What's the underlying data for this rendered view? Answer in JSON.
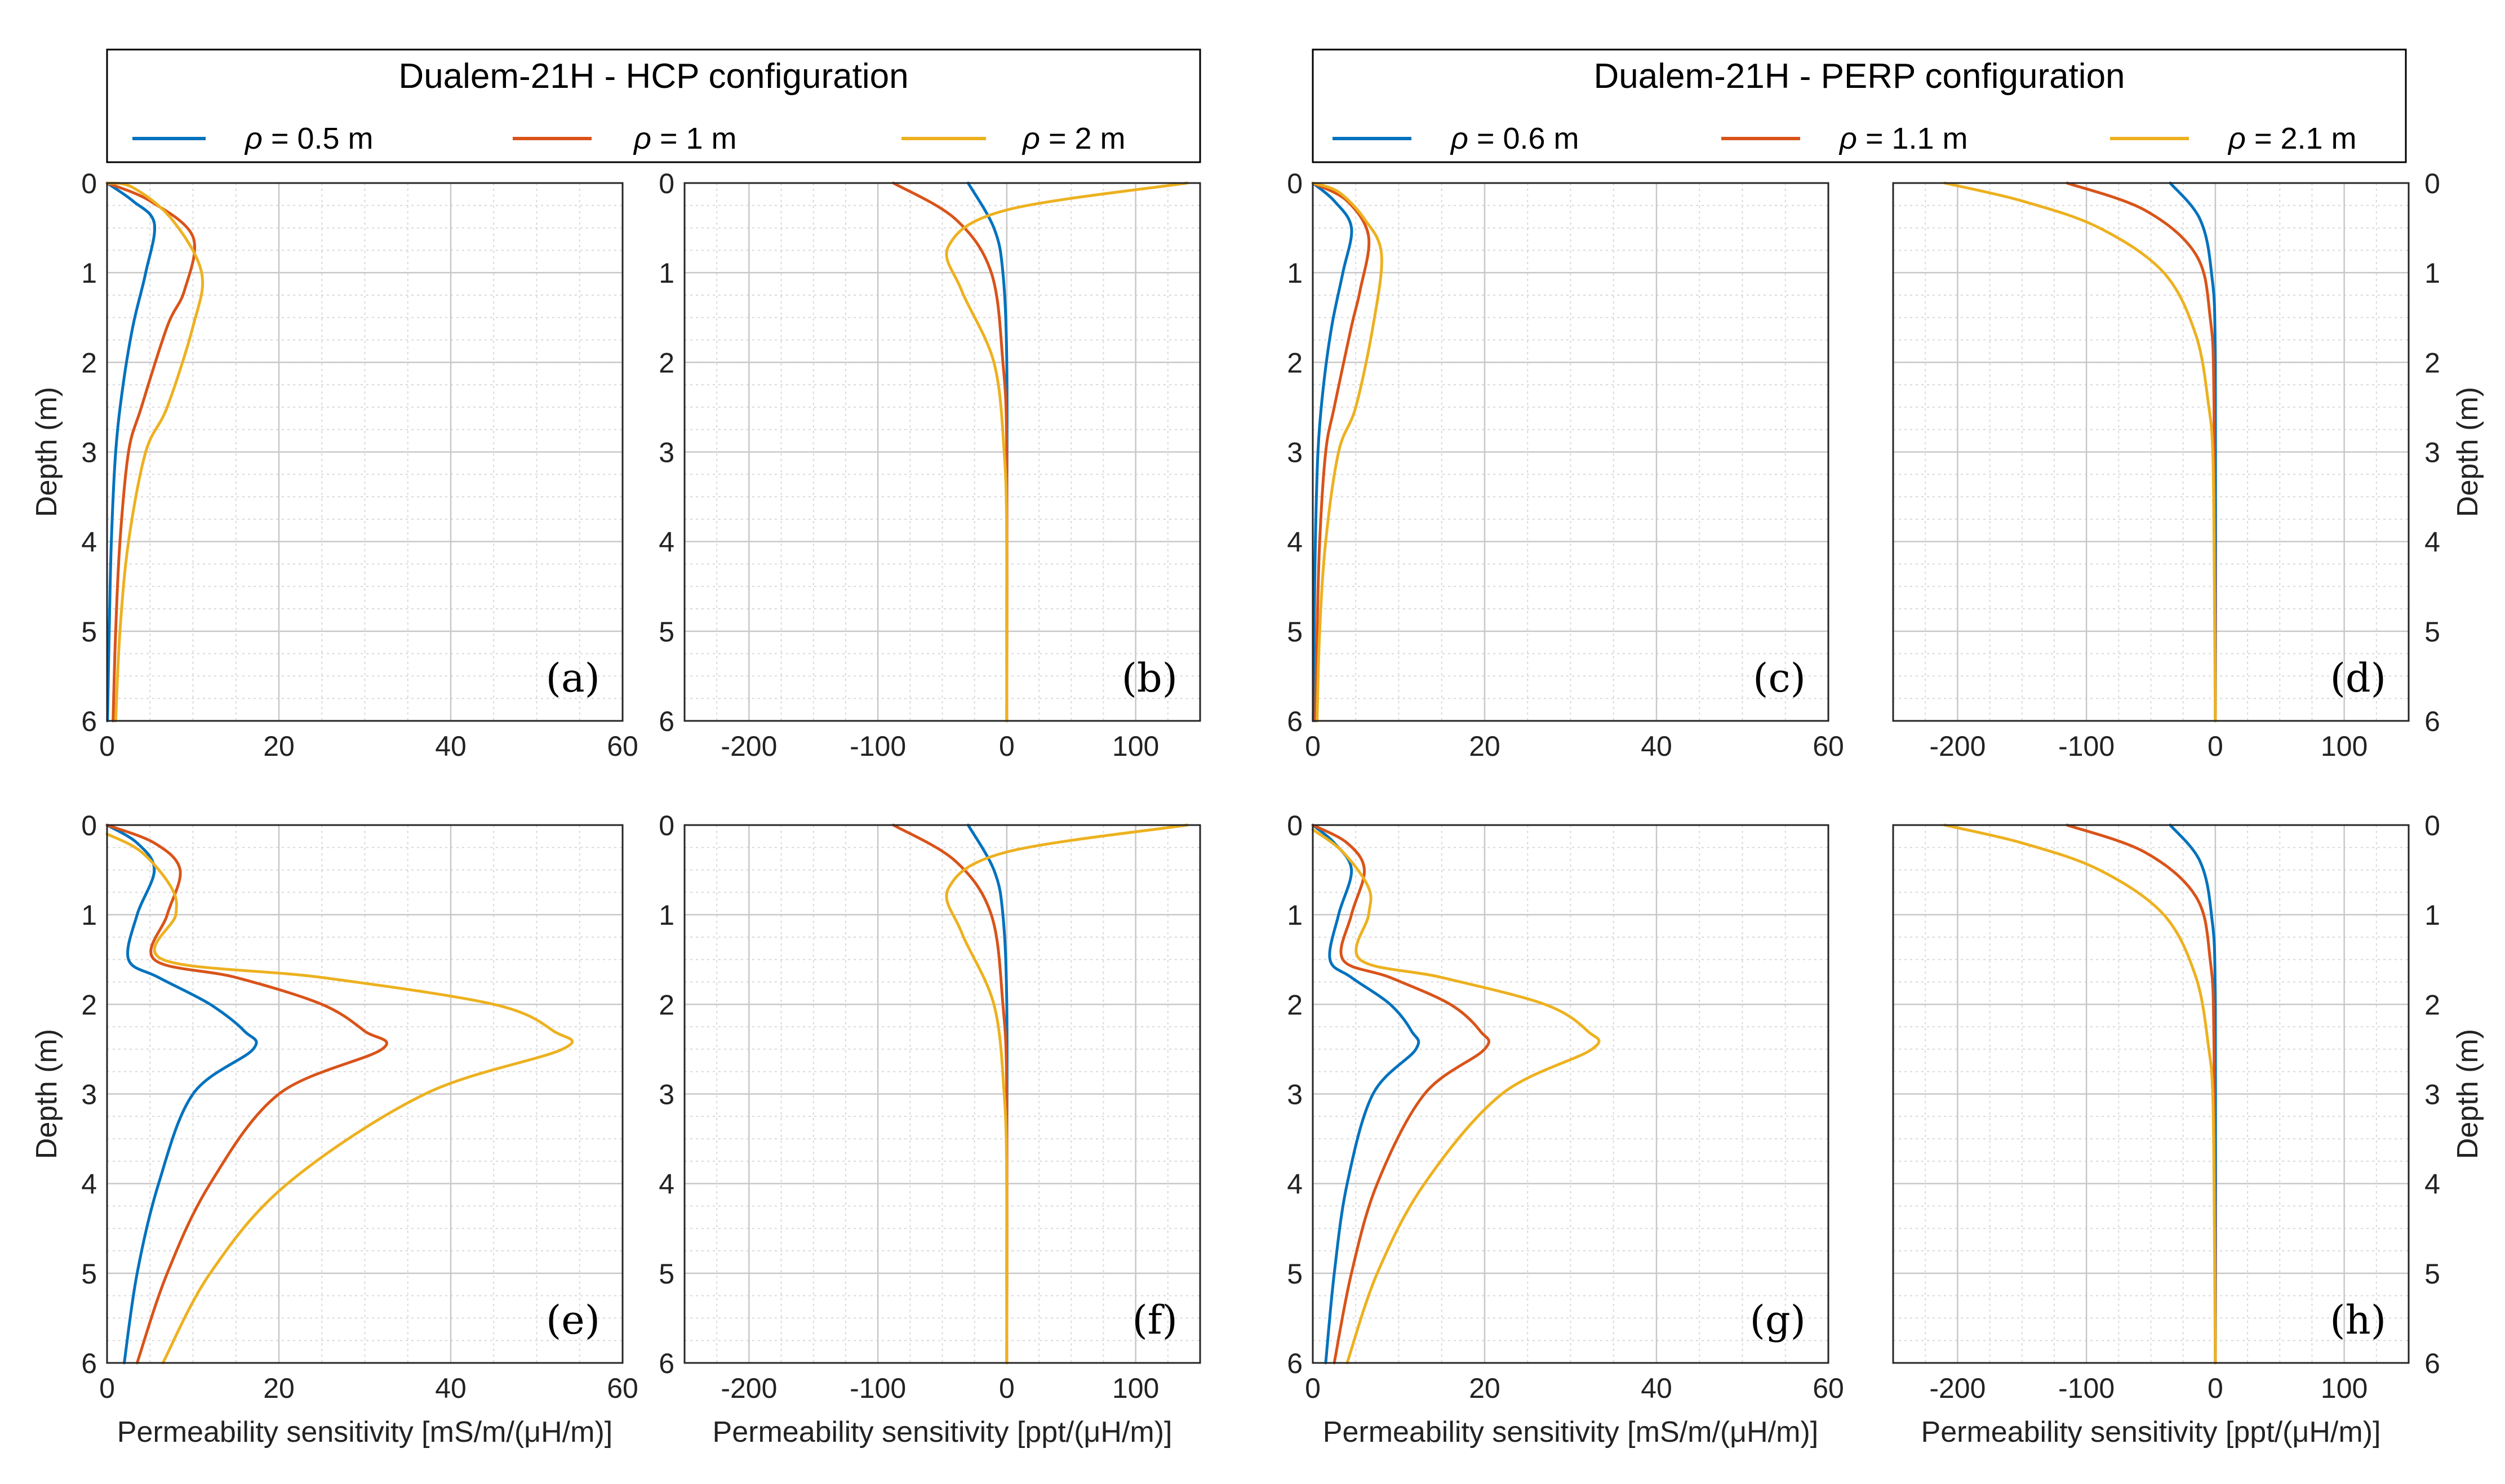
{
  "colors": {
    "short": "#0072BD",
    "mid": "#D95319",
    "long": "#EDB120"
  },
  "legends": [
    {
      "title": "Dualem-21H - HCP configuration",
      "symbol": "ρ",
      "entries": [
        "= 0.5 m",
        "= 1 m",
        "= 2 m"
      ]
    },
    {
      "title": "Dualem-21H - PERP configuration",
      "symbol": "ρ",
      "entries": [
        "= 0.6 m",
        "= 1.1 m",
        "= 2.1 m"
      ]
    }
  ],
  "axis_labels": {
    "ylabel": "Depth (m)",
    "xlabel_cond": "Permeability sensitivity [mS/m/(μH/m)]",
    "xlabel_ppt": "Permeability sensitivity [ppt/(μH/m)]"
  },
  "chart_data": [
    {
      "type": "line",
      "panel": "(a)",
      "xlim": [
        0,
        60
      ],
      "ylim": [
        0,
        6
      ],
      "xticks": [
        0,
        20,
        40,
        60
      ],
      "yticks": [
        0,
        1,
        2,
        3,
        4,
        5,
        6
      ],
      "grid": true,
      "series": [
        {
          "name": "ρ = 0.5 m",
          "x": [
            0,
            3,
            5.5,
            4.5,
            3,
            1.8,
            1,
            0.5,
            0.25,
            0.05
          ],
          "y": [
            0,
            0.2,
            0.45,
            1.0,
            1.6,
            2.3,
            3.0,
            4.0,
            5.0,
            6.0
          ]
        },
        {
          "name": "ρ = 1 m",
          "x": [
            0,
            5,
            10,
            9,
            7,
            4,
            2.5,
            1.5,
            1,
            0.7
          ],
          "y": [
            0,
            0.2,
            0.6,
            1.2,
            1.6,
            2.5,
            3.0,
            4.0,
            5.0,
            6.0
          ]
        },
        {
          "name": "ρ = 2 m",
          "x": [
            0,
            3,
            7.5,
            11,
            10,
            7,
            4.5,
            2.5,
            1.5,
            1
          ],
          "y": [
            0,
            0.05,
            0.4,
            1.0,
            1.6,
            2.5,
            3.0,
            4.0,
            5.0,
            6.0
          ]
        }
      ]
    },
    {
      "type": "line",
      "panel": "(b)",
      "xlim": [
        -250,
        150
      ],
      "ylim": [
        0,
        6
      ],
      "xticks": [
        -200,
        -100,
        0,
        100
      ],
      "yticks": [
        0,
        1,
        2,
        3,
        4,
        5,
        6
      ],
      "grid": true,
      "series": [
        {
          "name": "ρ = 0.5 m",
          "x": [
            -30,
            -10,
            -3,
            0,
            0,
            0
          ],
          "y": [
            0,
            0.5,
            1.0,
            2.0,
            4.0,
            6.0
          ]
        },
        {
          "name": "ρ = 1 m",
          "x": [
            -88,
            -40,
            -12,
            -3,
            0,
            0
          ],
          "y": [
            0,
            0.4,
            1.0,
            2.0,
            3.0,
            6.0
          ]
        },
        {
          "name": "ρ = 2 m",
          "x": [
            140,
            0,
            -45,
            -35,
            -10,
            -2,
            0,
            0
          ],
          "y": [
            0,
            0.3,
            0.7,
            1.2,
            2.0,
            3.0,
            4.0,
            6.0
          ]
        }
      ]
    },
    {
      "type": "line",
      "panel": "(c)",
      "xlim": [
        0,
        60
      ],
      "ylim": [
        0,
        6
      ],
      "xticks": [
        0,
        20,
        40,
        60
      ],
      "yticks": [
        0,
        1,
        2,
        3,
        4,
        5,
        6
      ],
      "grid": true,
      "series": [
        {
          "name": "ρ = 0.6 m",
          "x": [
            0,
            2.5,
            4.5,
            3.5,
            2.2,
            1.2,
            0.6,
            0.3,
            0.15,
            0.05
          ],
          "y": [
            0,
            0.2,
            0.5,
            1.0,
            1.6,
            2.3,
            3.0,
            4.0,
            5.0,
            6.0
          ]
        },
        {
          "name": "ρ = 1.1 m",
          "x": [
            0,
            4,
            6.5,
            5.5,
            4.5,
            2.5,
            1.5,
            0.8,
            0.5,
            0.3
          ],
          "y": [
            0,
            0.2,
            0.6,
            1.2,
            1.6,
            2.5,
            3.0,
            4.0,
            5.0,
            6.0
          ]
        },
        {
          "name": "ρ = 2.1 m",
          "x": [
            0,
            3,
            6,
            8,
            7,
            5,
            3,
            1.5,
            0.8,
            0.5
          ],
          "y": [
            0,
            0.1,
            0.4,
            0.8,
            1.6,
            2.5,
            3.0,
            4.0,
            5.0,
            6.0
          ]
        }
      ]
    },
    {
      "type": "line",
      "panel": "(d)",
      "xlim": [
        -250,
        150
      ],
      "ylim": [
        0,
        6
      ],
      "xticks": [
        -200,
        -100,
        0,
        100
      ],
      "yticks": [
        0,
        1,
        2,
        3,
        4,
        5,
        6
      ],
      "grid": true,
      "series": [
        {
          "name": "ρ = 0.6 m",
          "x": [
            -35,
            -12,
            -3,
            0,
            0
          ],
          "y": [
            0,
            0.4,
            1.0,
            2.0,
            6.0
          ]
        },
        {
          "name": "ρ = 1.1 m",
          "x": [
            -115,
            -55,
            -15,
            -4,
            -1,
            0
          ],
          "y": [
            0,
            0.3,
            0.8,
            1.5,
            2.5,
            6.0
          ]
        },
        {
          "name": "ρ = 2.1 m",
          "x": [
            -210,
            -150,
            -90,
            -40,
            -15,
            -5,
            -2,
            -1,
            0
          ],
          "y": [
            0,
            0.2,
            0.5,
            1.0,
            1.7,
            2.5,
            3.0,
            4.0,
            6.0
          ]
        }
      ]
    },
    {
      "type": "line",
      "panel": "(e)",
      "xlim": [
        0,
        60
      ],
      "ylim": [
        0,
        6
      ],
      "xticks": [
        0,
        20,
        40,
        60
      ],
      "yticks": [
        0,
        1,
        2,
        3,
        4,
        5,
        6
      ],
      "grid": true,
      "series": [
        {
          "name": "ρ = 0.5 m",
          "x": [
            0,
            3.5,
            5.5,
            3.5,
            2.5,
            6,
            12,
            16,
            17,
            10,
            6,
            3.5,
            2
          ],
          "y": [
            0,
            0.2,
            0.5,
            1.0,
            1.5,
            1.7,
            2.0,
            2.3,
            2.5,
            3.0,
            4.0,
            5.0,
            6.0
          ]
        },
        {
          "name": "ρ = 1 m",
          "x": [
            0,
            5.5,
            8.5,
            7,
            5.5,
            15,
            25,
            30,
            32,
            20,
            12,
            7,
            3.5
          ],
          "y": [
            0,
            0.2,
            0.5,
            1.0,
            1.5,
            1.7,
            2.0,
            2.3,
            2.5,
            3.0,
            4.0,
            5.0,
            6.0
          ]
        },
        {
          "name": "ρ = 2 m",
          "x": [
            0,
            4,
            7.5,
            8,
            6.5,
            25,
            45,
            52,
            53,
            37,
            21,
            12,
            6.5
          ],
          "y": [
            0.1,
            0.3,
            0.7,
            1.0,
            1.5,
            1.7,
            2.0,
            2.3,
            2.5,
            3.0,
            4.0,
            5.0,
            6.0
          ]
        }
      ]
    },
    {
      "type": "line",
      "panel": "(f)",
      "xlim": [
        -250,
        150
      ],
      "ylim": [
        0,
        6
      ],
      "xticks": [
        -200,
        -100,
        0,
        100
      ],
      "yticks": [
        0,
        1,
        2,
        3,
        4,
        5,
        6
      ],
      "grid": true,
      "series": [
        {
          "name": "ρ = 0.5 m",
          "x": [
            -30,
            -10,
            -3,
            0,
            0,
            0
          ],
          "y": [
            0,
            0.5,
            1.0,
            2.0,
            4.0,
            6.0
          ]
        },
        {
          "name": "ρ = 1 m",
          "x": [
            -88,
            -40,
            -12,
            -3,
            0,
            0
          ],
          "y": [
            0,
            0.4,
            1.0,
            2.0,
            3.0,
            6.0
          ]
        },
        {
          "name": "ρ = 2 m",
          "x": [
            140,
            0,
            -45,
            -35,
            -10,
            -2,
            0,
            0
          ],
          "y": [
            0,
            0.3,
            0.7,
            1.2,
            2.0,
            3.0,
            4.0,
            6.0
          ]
        }
      ]
    },
    {
      "type": "line",
      "panel": "(g)",
      "xlim": [
        0,
        60
      ],
      "ylim": [
        0,
        6
      ],
      "xticks": [
        0,
        20,
        40,
        60
      ],
      "yticks": [
        0,
        1,
        2,
        3,
        4,
        5,
        6
      ],
      "grid": true,
      "series": [
        {
          "name": "ρ = 0.6 m",
          "x": [
            0,
            2.5,
            4.5,
            3,
            2,
            4.5,
            9,
            11.5,
            12,
            7,
            4,
            2.5,
            1.5
          ],
          "y": [
            0,
            0.2,
            0.5,
            1.0,
            1.5,
            1.7,
            2.0,
            2.3,
            2.5,
            3.0,
            4.0,
            5.0,
            6.0
          ]
        },
        {
          "name": "ρ = 1.1 m",
          "x": [
            0,
            4,
            6,
            4.5,
            3.5,
            9,
            16,
            19.5,
            20,
            13,
            7.5,
            4.5,
            2.5
          ],
          "y": [
            0,
            0.2,
            0.5,
            1.0,
            1.5,
            1.7,
            2.0,
            2.3,
            2.5,
            3.0,
            4.0,
            5.0,
            6.0
          ]
        },
        {
          "name": "ρ = 2.1 m",
          "x": [
            0,
            3.5,
            6.5,
            6.5,
            5.5,
            15,
            27,
            32,
            32.5,
            22,
            13,
            7.5,
            4
          ],
          "y": [
            0.05,
            0.3,
            0.7,
            1.0,
            1.5,
            1.7,
            2.0,
            2.3,
            2.5,
            3.0,
            4.0,
            5.0,
            6.0
          ]
        }
      ]
    },
    {
      "type": "line",
      "panel": "(h)",
      "xlim": [
        -250,
        150
      ],
      "ylim": [
        0,
        6
      ],
      "xticks": [
        -200,
        -100,
        0,
        100
      ],
      "yticks": [
        0,
        1,
        2,
        3,
        4,
        5,
        6
      ],
      "grid": true,
      "series": [
        {
          "name": "ρ = 0.6 m",
          "x": [
            -35,
            -12,
            -3,
            0,
            0
          ],
          "y": [
            0,
            0.4,
            1.0,
            2.0,
            6.0
          ]
        },
        {
          "name": "ρ = 1.1 m",
          "x": [
            -115,
            -55,
            -15,
            -4,
            -1,
            0
          ],
          "y": [
            0,
            0.3,
            0.8,
            1.5,
            2.5,
            6.0
          ]
        },
        {
          "name": "ρ = 2.1 m",
          "x": [
            -210,
            -150,
            -90,
            -40,
            -15,
            -5,
            -2,
            -1,
            0
          ],
          "y": [
            0,
            0.2,
            0.5,
            1.0,
            1.7,
            2.5,
            3.0,
            4.0,
            6.0
          ]
        }
      ]
    }
  ]
}
